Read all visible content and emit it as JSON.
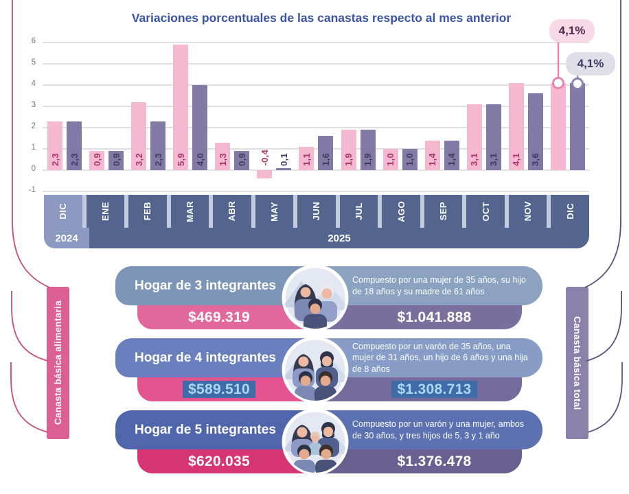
{
  "chart": {
    "title": "Variaciones porcentuales de las canastas respecto al mes anterior",
    "callout_cba": "4,1%",
    "callout_cbt": "4,1%"
  },
  "chart_data": {
    "type": "bar",
    "categories": [
      "DIC",
      "ENE",
      "FEB",
      "MAR",
      "ABR",
      "MAY",
      "JUN",
      "JUL",
      "AGO",
      "SEP",
      "OCT",
      "NOV",
      "DIC"
    ],
    "series": [
      {
        "name": "Canasta básica alimentaria",
        "color": "#f4b9d1",
        "values": [
          2.3,
          0.9,
          3.2,
          5.9,
          1.3,
          -0.4,
          1.1,
          1.9,
          1.0,
          1.4,
          3.1,
          4.1,
          4.1
        ]
      },
      {
        "name": "Canasta básica total",
        "color": "#827aa4",
        "values": [
          2.3,
          0.9,
          2.3,
          4.0,
          0.9,
          0.1,
          1.6,
          1.9,
          1.0,
          1.4,
          3.1,
          3.6,
          4.1
        ]
      }
    ],
    "ylim": [
      -1,
      6
    ],
    "yticks": [
      6,
      5,
      4,
      3,
      2,
      1,
      0,
      -1
    ],
    "grid": true,
    "legend_position": "none",
    "hide_label_index": 12,
    "year_left": "2024",
    "year_right": "2025"
  },
  "sides": {
    "left_label": "Canasta básica alimentaria",
    "right_label": "Canasta básica total"
  },
  "rows": [
    {
      "household": "Hogar de 3 integrantes",
      "cba_value": "$469.319",
      "cbt_value": "$1.041.888",
      "description": "Compuesto por una mujer de 35 años, su hijo de 18 años y su madre de 61 años",
      "highlight": false
    },
    {
      "household": "Hogar de 4 integrantes",
      "cba_value": "$589.510",
      "cbt_value": "$1.308.713",
      "description": "Compuesto por un varón de 35 años, una mujer de 31 años, un hijo de 6 años y una hija de 8 años",
      "highlight": true
    },
    {
      "household": "Hogar de 5 integrantes",
      "cba_value": "$620.035",
      "cbt_value": "$1.376.478",
      "description": "Compuesto por un varón y una mujer, ambos de 30 años, y tres hijos de 5, 3 y 1 año",
      "highlight": false
    }
  ],
  "colors": {
    "title": "#3a54a4",
    "bar_cba": "#f4b9d1",
    "bar_cbt": "#827aa4",
    "bar_label_cba": "#ab3468",
    "bar_label_cbt": "#3f3b60",
    "month_band": "#53658f",
    "month_band_light": "#8c9ac2",
    "side_left": "#dc6093",
    "side_right": "#8b80aa",
    "highlight_bg": "#3f6ca9",
    "highlight_text": "#a8d8f2"
  }
}
